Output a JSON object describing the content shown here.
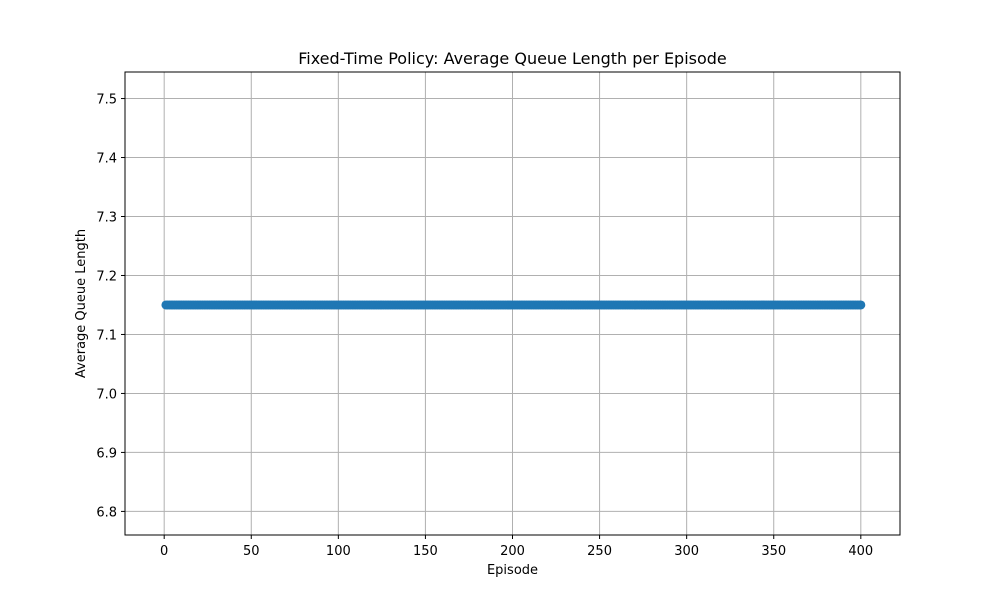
{
  "chart_data": {
    "type": "line",
    "title": "Fixed-Time Policy: Average Queue Length per Episode",
    "xlabel": "Episode",
    "ylabel": "Average Queue Length",
    "xlim": [
      -22.5,
      422.5
    ],
    "ylim": [
      6.76,
      7.545
    ],
    "xticks": [
      0,
      50,
      100,
      150,
      200,
      250,
      300,
      350,
      400
    ],
    "yticks": [
      6.8,
      6.9,
      7.0,
      7.1,
      7.2,
      7.3,
      7.4,
      7.5
    ],
    "xtick_labels": [
      "0",
      "50",
      "100",
      "150",
      "200",
      "250",
      "300",
      "350",
      "400"
    ],
    "ytick_labels": [
      "6.8",
      "6.9",
      "7.0",
      "7.1",
      "7.2",
      "7.3",
      "7.4",
      "7.5"
    ],
    "grid": true,
    "marker": "circle",
    "series": [
      {
        "color": "#1f77b4",
        "x_start": 1,
        "x_end": 400,
        "x_step": 1,
        "constant_value": 7.15
      }
    ]
  }
}
